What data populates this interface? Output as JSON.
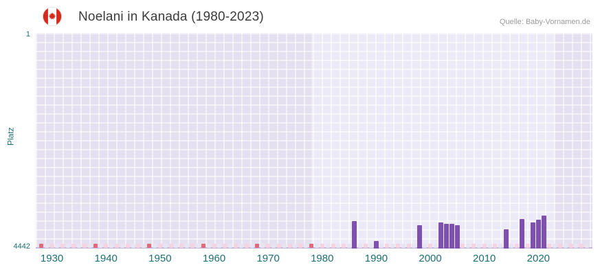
{
  "header": {
    "title": "Noelani in Kanada (1980-2023)",
    "source": "Quelle: Baby-Vornamen.de"
  },
  "chart_data": {
    "type": "bar",
    "title": "Noelani in Kanada (1980-2023)",
    "xlabel": "",
    "ylabel": "Platz",
    "y_axis": {
      "top_label": "1",
      "bottom_label": "4442",
      "top_value": 1,
      "bottom_value": 4442,
      "inverted": true
    },
    "x_range": [
      1927,
      2030
    ],
    "x_ticks": [
      1930,
      1940,
      1950,
      1960,
      1970,
      1980,
      1990,
      2000,
      2010,
      2020
    ],
    "highlight_band": {
      "from": 1978,
      "to": 2023
    },
    "legend": "none",
    "grid": true,
    "series": [
      {
        "name": "Platz",
        "points": [
          {
            "year": 1986,
            "rank": 3874
          },
          {
            "year": 1990,
            "rank": 4285
          },
          {
            "year": 1998,
            "rank": 3958
          },
          {
            "year": 2002,
            "rank": 3901
          },
          {
            "year": 2003,
            "rank": 3930
          },
          {
            "year": 2004,
            "rank": 3930
          },
          {
            "year": 2005,
            "rank": 3958
          },
          {
            "year": 2014,
            "rank": 4043
          },
          {
            "year": 2017,
            "rank": 3830
          },
          {
            "year": 2019,
            "rank": 3901
          },
          {
            "year": 2020,
            "rank": 3844
          },
          {
            "year": 2021,
            "rank": 3759
          }
        ]
      }
    ],
    "baseline_markers": {
      "start": 1928,
      "end": 2029,
      "red_years": [
        1928,
        1938,
        1948,
        1958,
        1968,
        1978
      ]
    },
    "colors": {
      "bar": "#7e51ad",
      "plot_bg": "#e4e0ef",
      "band_bg": "#edeaf7",
      "grid": "#ffffff",
      "axis_text": "#1d6f6f",
      "red_marker": "#e0697a",
      "pink_marker": "#f5d3e0",
      "lavender_marker": "#e9e4f2"
    }
  }
}
